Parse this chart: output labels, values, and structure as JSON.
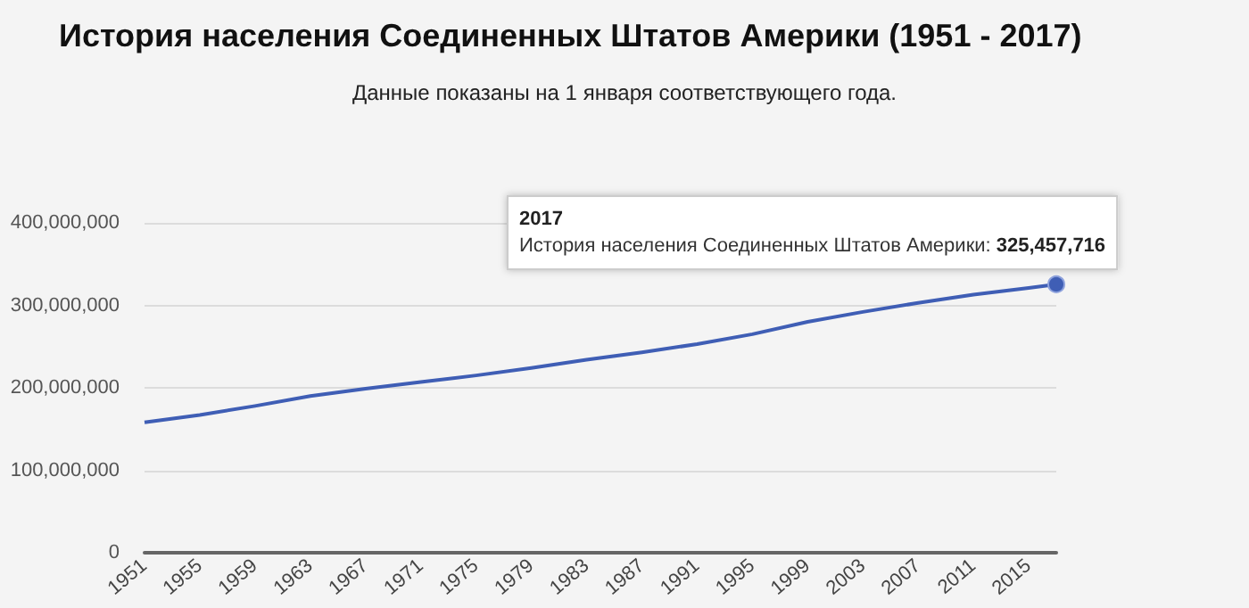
{
  "chart_data": {
    "type": "line",
    "title": "История населения Соединенных Штатов Америки (1951 - 2017)",
    "subtitle": "Данные показаны на 1 января соответствующего года.",
    "x": [
      1951,
      1955,
      1959,
      1963,
      1967,
      1971,
      1975,
      1979,
      1983,
      1987,
      1991,
      1995,
      1999,
      2003,
      2007,
      2011,
      2015,
      2017
    ],
    "series": [
      {
        "name": "История населения Соединенных Штатов Америки:",
        "color": "#3f5eb5",
        "value_labels": [
          null,
          null,
          null,
          null,
          null,
          null,
          null,
          null,
          null,
          null,
          null,
          null,
          null,
          null,
          null,
          null,
          null,
          "325,457,716"
        ],
        "values": [
          158000000,
          167000000,
          178000000,
          190000000,
          199000000,
          207000000,
          215000000,
          224000000,
          234000000,
          243000000,
          253000000,
          265000000,
          280000000,
          292000000,
          303000000,
          313000000,
          321000000,
          325457716
        ]
      }
    ],
    "xlim": [
      1951,
      2017
    ],
    "xticks": [
      1951,
      1955,
      1959,
      1963,
      1967,
      1971,
      1975,
      1979,
      1983,
      1987,
      1991,
      1995,
      1999,
      2003,
      2007,
      2011,
      2015
    ],
    "ylim": [
      0,
      400000000
    ],
    "yticks": [
      0,
      {
        "value": 100000000,
        "label": "100,000,000"
      },
      {
        "value": 200000000,
        "label": "200,000,000"
      },
      {
        "value": 300000000,
        "label": "300,000,000"
      },
      {
        "value": 400000000,
        "label": "400,000,000"
      }
    ],
    "annotations": [
      "2017"
    ],
    "grid": "y",
    "legend": false,
    "marker": "none",
    "line_style": "solid"
  }
}
